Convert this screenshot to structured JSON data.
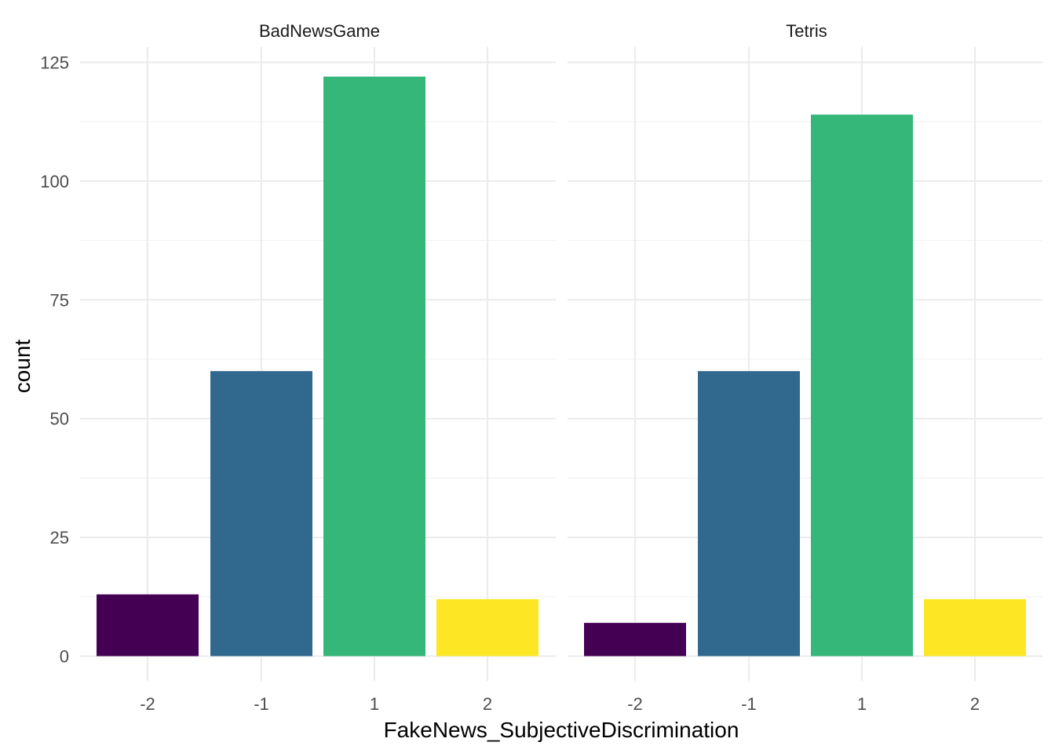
{
  "chart_data": {
    "type": "bar",
    "xlabel": "FakeNews_SubjectiveDiscrimination",
    "ylabel": "count",
    "categories": [
      "-2",
      "-1",
      "1",
      "2"
    ],
    "colors": [
      "#440154",
      "#31688E",
      "#35B779",
      "#FDE725"
    ],
    "ylim": [
      0,
      125
    ],
    "yticks": [
      0,
      25,
      50,
      75,
      100,
      125
    ],
    "grid": true,
    "legend": "none",
    "panels": [
      {
        "title": "BadNewsGame",
        "values": [
          13,
          60,
          122,
          12
        ]
      },
      {
        "title": "Tetris",
        "values": [
          7,
          60,
          114,
          12
        ]
      }
    ]
  }
}
